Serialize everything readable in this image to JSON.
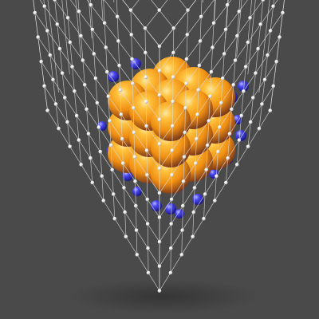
{
  "scene": {
    "subject": "lattice-cube",
    "background_color": "#4a4a4a",
    "lattice": {
      "grid_points_per_edge": 11,
      "node_color": "#f4f4f4",
      "line_color": "#d8d8d8"
    },
    "cluster": {
      "layers": 3,
      "atoms_per_edge": 3,
      "atom_color_light": "#ffc23d",
      "atom_color_mid": "#f08f12",
      "atom_color_dark": "#5a2a24",
      "shell_color": "#3330d8",
      "shell_color_light": "#8d8cff"
    }
  }
}
